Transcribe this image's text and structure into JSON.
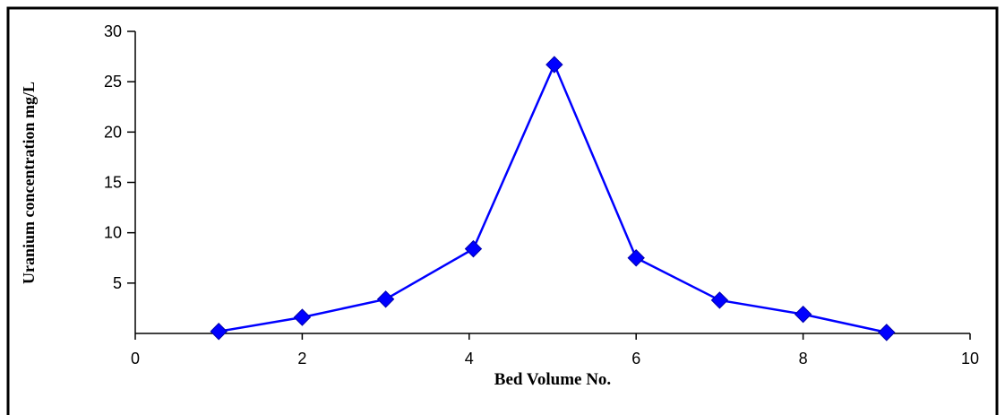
{
  "chart_data": {
    "type": "line",
    "title": "",
    "xlabel": "Bed Volume No.",
    "ylabel": "Uranium concentration mg/L",
    "xlim": [
      0,
      10
    ],
    "ylim": [
      0,
      30
    ],
    "x_ticks": [
      0,
      2,
      4,
      6,
      8,
      10
    ],
    "y_ticks": [
      5,
      10,
      15,
      20,
      25,
      30
    ],
    "grid": false,
    "legend": "none",
    "series": [
      {
        "color": "#0000ff",
        "marker": "diamond",
        "points": [
          {
            "x": 1,
            "y": 0.2
          },
          {
            "x": 2,
            "y": 1.6
          },
          {
            "x": 3,
            "y": 3.4
          },
          {
            "x": 4.05,
            "y": 8.4
          },
          {
            "x": 5.02,
            "y": 26.7
          },
          {
            "x": 6,
            "y": 7.5
          },
          {
            "x": 7,
            "y": 3.3
          },
          {
            "x": 8,
            "y": 1.9
          },
          {
            "x": 9,
            "y": 0.1
          }
        ]
      }
    ]
  }
}
